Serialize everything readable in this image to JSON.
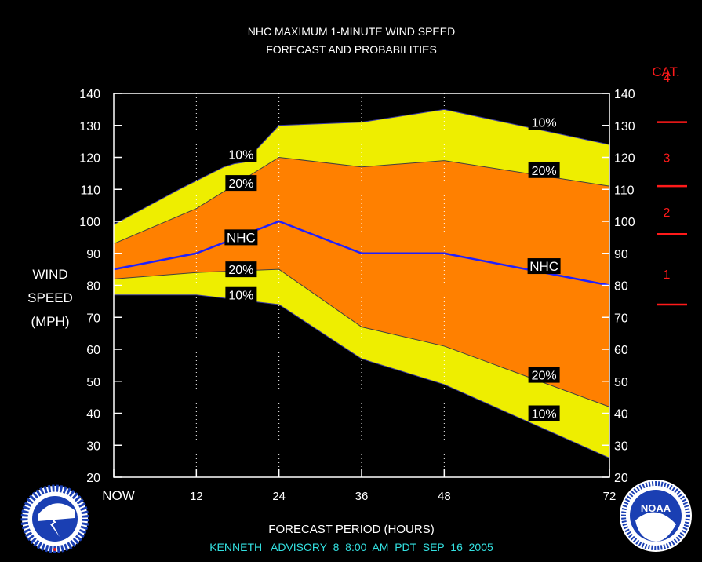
{
  "title_line1": "NHC MAXIMUM 1-MINUTE WIND SPEED",
  "title_line2": "FORECAST AND PROBABILITIES",
  "ylabel_lines": [
    "WIND",
    "SPEED",
    "(MPH)"
  ],
  "xlabel": "FORECAST PERIOD (HOURS)",
  "advisory": "KENNETH   ADVISORY  8  8:00  AM  PDT  SEP  16  2005",
  "category_header": "CAT.",
  "categories": [
    {
      "label": "4",
      "mid": 145
    },
    {
      "label": "3",
      "mid": 120
    },
    {
      "label": "2",
      "mid": 103
    },
    {
      "label": "1",
      "mid": 83.5
    }
  ],
  "category_thresholds": [
    131,
    111,
    96,
    74
  ],
  "logos": {
    "left": "nws-logo",
    "right": "noaa-logo",
    "noaa_text": "NOAA"
  },
  "colors": {
    "outer_band": "#eeee00",
    "inner_band": "#ff8000",
    "nhc_line": "#2020ff",
    "category": "#ff1a1a",
    "advisory": "#33e0e0",
    "background": "#000000"
  },
  "chart_data": {
    "type": "area",
    "x": [
      0,
      12,
      24,
      36,
      48,
      72
    ],
    "xticks": [
      {
        "value": 0,
        "label": "NOW"
      },
      {
        "value": 12,
        "label": "12"
      },
      {
        "value": 24,
        "label": "24"
      },
      {
        "value": 36,
        "label": "36"
      },
      {
        "value": 48,
        "label": "48"
      },
      {
        "value": 72,
        "label": "72"
      }
    ],
    "xlim": [
      0,
      72
    ],
    "ylim": [
      20,
      140
    ],
    "yticks": [
      20,
      30,
      40,
      50,
      60,
      70,
      80,
      90,
      100,
      110,
      120,
      130,
      140
    ],
    "grid": "vertical dotted at forecast hours",
    "series": [
      {
        "name": "10%",
        "x": [
          0,
          9.5,
          16,
          17.5,
          19,
          24,
          36,
          48,
          72
        ],
        "values": [
          99,
          110,
          117,
          118,
          118.5,
          130,
          131,
          135,
          124
        ]
      },
      {
        "name": "20%",
        "x": [
          0,
          12,
          24,
          36,
          48,
          72
        ],
        "values": [
          93,
          104,
          120,
          117,
          119,
          111
        ]
      },
      {
        "name": "NHC",
        "x": [
          0,
          12,
          24,
          36,
          48,
          72
        ],
        "values": [
          85,
          90,
          100,
          90,
          90,
          80
        ]
      },
      {
        "name": "20%",
        "x": [
          0,
          12,
          24,
          36,
          48,
          72
        ],
        "values": [
          82,
          84,
          85,
          67,
          61,
          42
        ]
      },
      {
        "name": "10%",
        "x": [
          0,
          12,
          24,
          36,
          48,
          72
        ],
        "values": [
          77,
          77,
          74,
          57,
          49,
          26
        ]
      }
    ],
    "labels": [
      {
        "text": "10%",
        "x": 18.5,
        "y": 121
      },
      {
        "text": "20%",
        "x": 18.5,
        "y": 112
      },
      {
        "text": "NHC",
        "x": 18.5,
        "y": 95
      },
      {
        "text": "20%",
        "x": 18.5,
        "y": 85
      },
      {
        "text": "10%",
        "x": 18.5,
        "y": 77
      },
      {
        "text": "10%",
        "x": 62.5,
        "y": 131
      },
      {
        "text": "20%",
        "x": 62.5,
        "y": 116
      },
      {
        "text": "NHC",
        "x": 62.5,
        "y": 86
      },
      {
        "text": "20%",
        "x": 62.5,
        "y": 52
      },
      {
        "text": "10%",
        "x": 62.5,
        "y": 40
      }
    ]
  }
}
